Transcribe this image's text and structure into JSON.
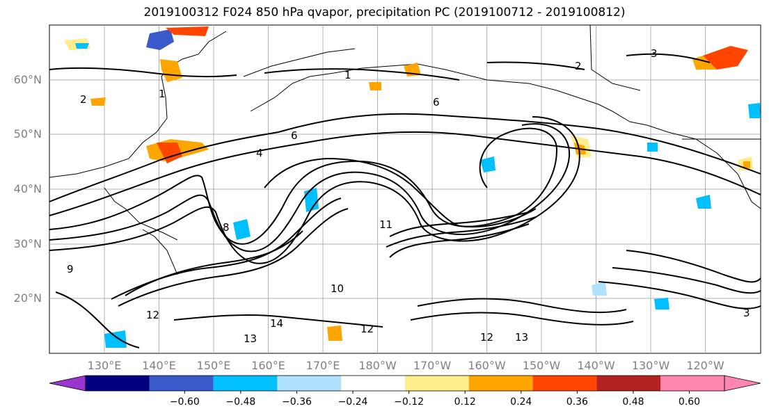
{
  "title": "2019100312 F024 850 hPa qvapor, precipitation PC (2019100712 - 2019100812)",
  "map": {
    "lat_labels": [
      "60°N",
      "50°N",
      "40°N",
      "30°N",
      "20°N"
    ],
    "lon_labels": [
      "130°E",
      "140°E",
      "150°E",
      "160°E",
      "170°E",
      "180°W",
      "170°W",
      "160°W",
      "150°W",
      "140°W",
      "130°W",
      "120°W"
    ],
    "contour_values": [
      "1",
      "2",
      "2",
      "3",
      "4",
      "6",
      "6",
      "8",
      "9",
      "10",
      "11",
      "12",
      "12",
      "13",
      "13",
      "14",
      "12",
      "3",
      "1"
    ]
  },
  "colorbar": {
    "tick_labels": [
      "−0.60",
      "−0.48",
      "−0.36",
      "−0.24",
      "−0.12",
      "0.12",
      "0.24",
      "0.36",
      "0.48",
      "0.60"
    ],
    "colors": [
      "#9a35cf",
      "#000080",
      "#3a5acb",
      "#00bfff",
      "#b0e2ff",
      "#ffffff",
      "#ffec8b",
      "#ffa500",
      "#ff4500",
      "#b22222",
      "#ff86b0"
    ]
  }
}
